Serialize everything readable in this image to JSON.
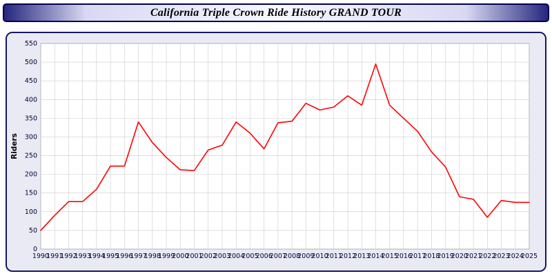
{
  "header": {
    "title": "California Triple Crown Ride History GRAND TOUR"
  },
  "chart_data": {
    "type": "line",
    "title": "California Triple Crown Ride History GRAND TOUR",
    "xlabel": "",
    "ylabel": "Riders",
    "ylim": [
      0,
      550
    ],
    "ytick_step": 50,
    "yticks": [
      0,
      50,
      100,
      150,
      200,
      250,
      300,
      350,
      400,
      450,
      500,
      550
    ],
    "categories": [
      "1990",
      "1991",
      "1992",
      "1993",
      "1994",
      "1995",
      "1996",
      "1997",
      "1998",
      "1999",
      "2000",
      "2001",
      "2002",
      "2003",
      "2004",
      "2005",
      "2006",
      "2007",
      "2008",
      "2009",
      "2010",
      "2011",
      "2012",
      "2013",
      "2014",
      "2015",
      "2016",
      "2017",
      "2018",
      "2019",
      "2020",
      "2021",
      "2022",
      "2023",
      "2024",
      "2025"
    ],
    "series": [
      {
        "name": "Riders",
        "values": [
          50,
          90,
          127,
          127,
          160,
          222,
          222,
          340,
          285,
          245,
          212,
          210,
          265,
          278,
          340,
          310,
          268,
          338,
          342,
          390,
          372,
          380,
          410,
          385,
          495,
          385,
          350,
          315,
          260,
          220,
          140,
          133,
          85,
          130,
          125,
          125
        ]
      }
    ],
    "grid": "on",
    "legend_position": "none",
    "line_color": "#ff0000",
    "plot_bg": "#ffffff",
    "grid_color": "#cccccc",
    "tick_label_color": "#000033"
  }
}
